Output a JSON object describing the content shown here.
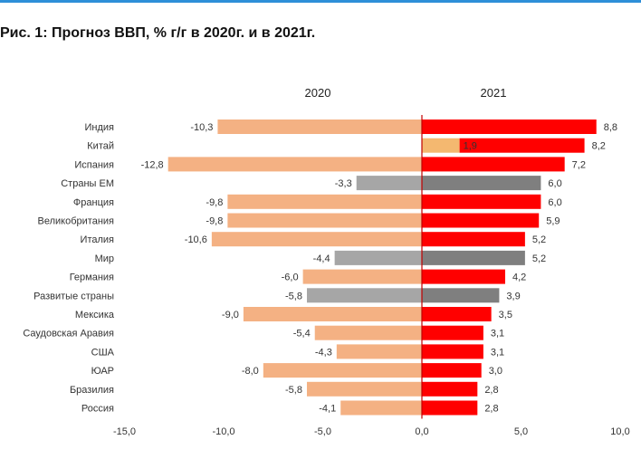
{
  "figure_title": "Рис. 1: Прогноз ВВП, % г/г в 2020г. и в 2021г.",
  "chart_data": {
    "type": "bar",
    "orientation": "horizontal",
    "title": "Рис. 1: Прогноз ВВП, % г/г в 2020г. и в 2021г.",
    "categories": [
      "Индия",
      "Китай",
      "Испания",
      "Страны ЕМ",
      "Франция",
      "Великобритания",
      "Италия",
      "Мир",
      "Германия",
      "Развитые страны",
      "Мексика",
      "Саудовская Аравия",
      "США",
      "ЮАР",
      "Бразилия",
      "Россия"
    ],
    "category_group": [
      "country",
      "country",
      "country",
      "aggregate",
      "country",
      "country",
      "country",
      "aggregate",
      "country",
      "aggregate",
      "country",
      "country",
      "country",
      "country",
      "country",
      "country"
    ],
    "series": [
      {
        "name": "2020",
        "values": [
          -10.3,
          1.9,
          -12.8,
          -3.3,
          -9.8,
          -9.8,
          -10.6,
          -4.4,
          -6.0,
          -5.8,
          -9.0,
          -5.4,
          -4.3,
          -8.0,
          -5.8,
          -4.1
        ]
      },
      {
        "name": "2021",
        "values": [
          8.8,
          8.2,
          7.2,
          6.0,
          6.0,
          5.9,
          5.2,
          5.2,
          4.2,
          3.9,
          3.5,
          3.1,
          3.1,
          3.0,
          2.8,
          2.8
        ]
      }
    ],
    "data_labels": {
      "2020": [
        "-10,3",
        "1,9",
        "-12,8",
        "-3,3",
        "-9,8",
        "-9,8",
        "-10,6",
        "-4,4",
        "-6,0",
        "-5,8",
        "-9,0",
        "-5,4",
        "-4,3",
        "-8,0",
        "-5,8",
        "-4,1"
      ],
      "2021": [
        "8,8",
        "8,2",
        "7,2",
        "6,0",
        "6,0",
        "5,9",
        "5,2",
        "5,2",
        "4,2",
        "3,9",
        "3,5",
        "3,1",
        "3,1",
        "3,0",
        "2,8",
        "2,8"
      ]
    },
    "xlim": [
      -15,
      10
    ],
    "xticks": [
      -15,
      -10,
      -5,
      0,
      5,
      10
    ],
    "xtick_labels": [
      "-15,0",
      "-10,0",
      "-5,0",
      "0,0",
      "5,0",
      "10,0"
    ],
    "grid": false,
    "legend": "none",
    "colors": {
      "2020_country": "#f4b183",
      "2020_aggregate": "#a6a6a6",
      "2021_country": "#ff0000",
      "2021_aggregate": "#7f7f7f",
      "2020_positive": "#f4b870",
      "axis": "#c00000"
    }
  }
}
